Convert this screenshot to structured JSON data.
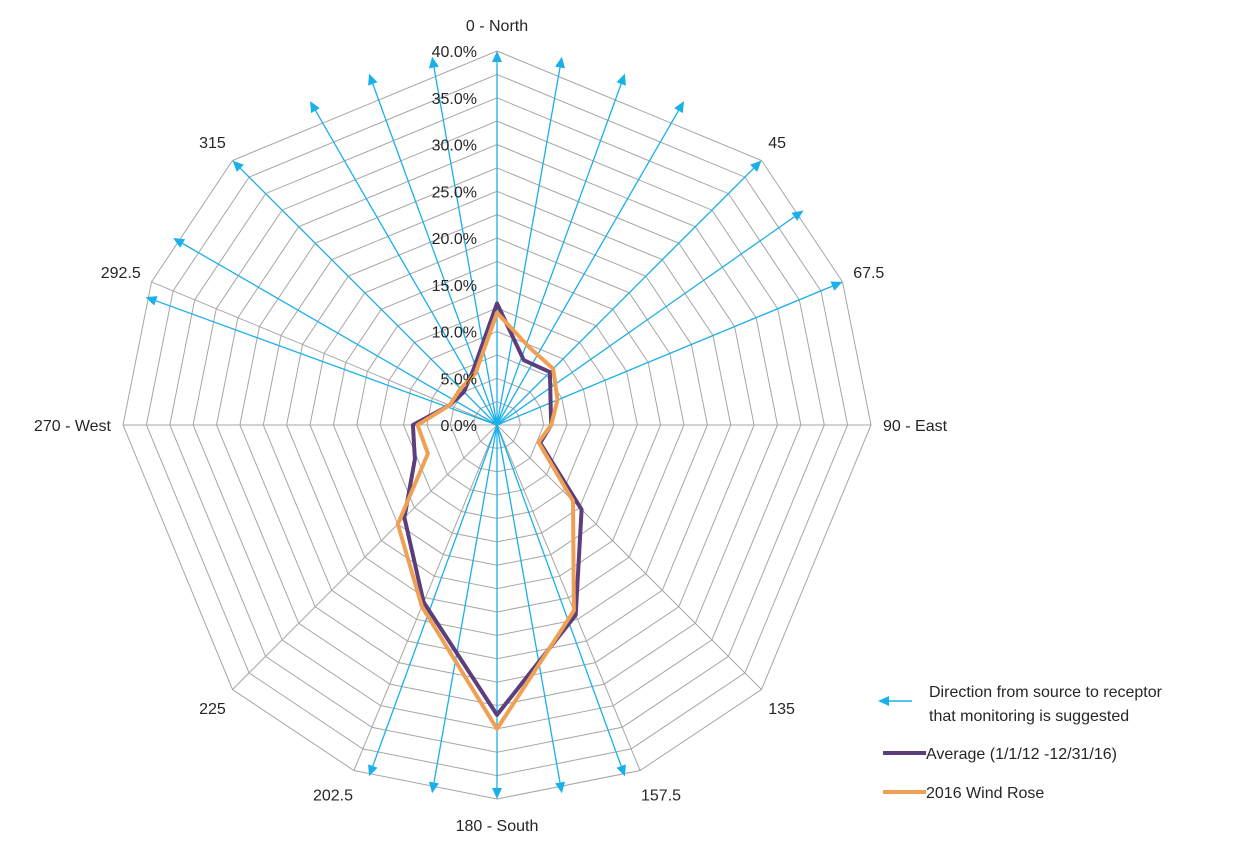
{
  "chart_data": {
    "type": "radar",
    "axis_categories": [
      "0 - North",
      "45",
      "67.5",
      "90 - East",
      "135",
      "157.5",
      "180 - South",
      "202.5",
      "225",
      "270 - West",
      "292.5",
      "315"
    ],
    "axes_directions_deg": [
      0,
      45,
      67.5,
      90,
      135,
      157.5,
      180,
      202.5,
      225,
      270,
      292.5,
      315
    ],
    "rlim": [
      0,
      40
    ],
    "rticks": [
      0,
      5,
      10,
      15,
      20,
      25,
      30,
      35,
      40
    ],
    "rtick_labels": [
      "0.0%",
      "5.0%",
      "10.0%",
      "15.0%",
      "20.0%",
      "25.0%",
      "30.0%",
      "35.0%",
      "40.0%"
    ],
    "minor_grid_step": 2.5,
    "grid": true,
    "legend_position": "bottom-right",
    "series": [
      {
        "name": "Average (1/1/12 -12/31/16)",
        "color": "#5b3f7d",
        "directions_deg": [
          0,
          22.5,
          45,
          67.5,
          90,
          112.5,
          135,
          157.5,
          180,
          202.5,
          225,
          247.5,
          270,
          292.5,
          315,
          337.5
        ],
        "values": [
          13.0,
          7.5,
          8.0,
          6.2,
          5.8,
          5.0,
          12.8,
          22.0,
          31.0,
          20.5,
          14.0,
          9.5,
          9.0,
          5.5,
          5.0,
          6.5
        ]
      },
      {
        "name": "2016 Wind Rose",
        "color": "#f0a054",
        "directions_deg": [
          0,
          22.5,
          45,
          67.5,
          90,
          112.5,
          135,
          157.5,
          180,
          202.5,
          225,
          247.5,
          270,
          292.5,
          315,
          337.5
        ],
        "values": [
          12.0,
          9.0,
          8.5,
          7.0,
          5.8,
          4.8,
          11.5,
          21.5,
          32.5,
          21.0,
          15.0,
          8.0,
          8.5,
          5.5,
          5.5,
          6.0
        ]
      }
    ],
    "suggested_directions": {
      "label": "Direction from source to receptor that monitoring is suggested",
      "color": "#1ab0ea",
      "directions_deg": [
        0,
        10,
        20,
        30,
        45,
        55,
        67.5,
        160,
        170,
        180,
        190,
        200,
        290,
        300,
        315,
        330,
        340,
        350
      ]
    }
  },
  "legend": {
    "arrow_line1": "Direction from source to receptor",
    "arrow_line2": "that monitoring is suggested",
    "avg_label": "Average (1/1/12 -12/31/16)",
    "wr2016_label": "2016 Wind Rose"
  },
  "colors": {
    "grid": "#a6a6a6",
    "arrow": "#1ab0ea",
    "avg": "#5b3f7d",
    "wr2016": "#f0a054"
  }
}
